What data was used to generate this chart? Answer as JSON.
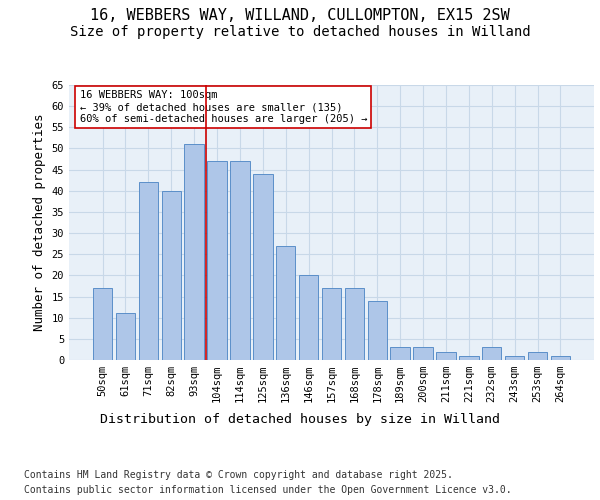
{
  "title_line1": "16, WEBBERS WAY, WILLAND, CULLOMPTON, EX15 2SW",
  "title_line2": "Size of property relative to detached houses in Willand",
  "xlabel": "Distribution of detached houses by size in Willand",
  "ylabel": "Number of detached properties",
  "categories": [
    "50sqm",
    "61sqm",
    "71sqm",
    "82sqm",
    "93sqm",
    "104sqm",
    "114sqm",
    "125sqm",
    "136sqm",
    "146sqm",
    "157sqm",
    "168sqm",
    "178sqm",
    "189sqm",
    "200sqm",
    "211sqm",
    "221sqm",
    "232sqm",
    "243sqm",
    "253sqm",
    "264sqm"
  ],
  "values": [
    17,
    11,
    42,
    40,
    51,
    47,
    47,
    44,
    27,
    20,
    17,
    17,
    14,
    3,
    3,
    2,
    1,
    3,
    1,
    2,
    1
  ],
  "bar_color": "#aec6e8",
  "bar_edge_color": "#5b8fc9",
  "vline_x": 4.5,
  "vline_color": "#cc0000",
  "annotation_text": "16 WEBBERS WAY: 100sqm\n← 39% of detached houses are smaller (135)\n60% of semi-detached houses are larger (205) →",
  "annotation_box_color": "#ffffff",
  "annotation_box_edge": "#cc0000",
  "ylim": [
    0,
    65
  ],
  "yticks": [
    0,
    5,
    10,
    15,
    20,
    25,
    30,
    35,
    40,
    45,
    50,
    55,
    60,
    65
  ],
  "grid_color": "#c8d8e8",
  "bg_color": "#e8f0f8",
  "footer_line1": "Contains HM Land Registry data © Crown copyright and database right 2025.",
  "footer_line2": "Contains public sector information licensed under the Open Government Licence v3.0.",
  "title_fontsize": 11,
  "subtitle_fontsize": 10,
  "axis_label_fontsize": 9,
  "tick_fontsize": 7.5,
  "footer_fontsize": 7
}
